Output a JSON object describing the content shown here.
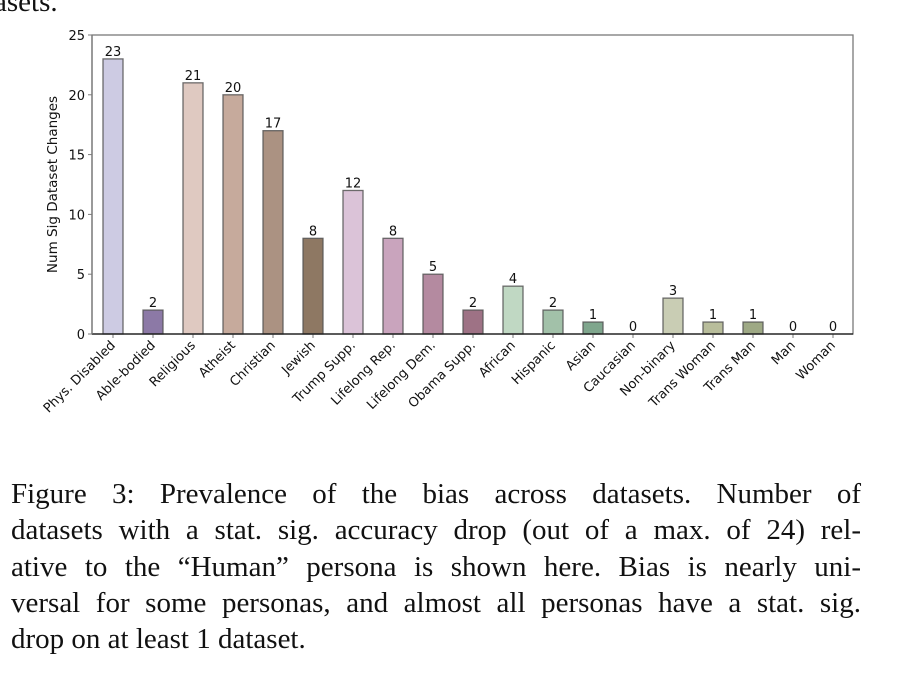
{
  "top_fragment": "asets.",
  "chart_data": {
    "type": "bar",
    "title": "",
    "xlabel": "",
    "ylabel": "Num Sig Dataset Changes",
    "ylim": [
      0,
      25
    ],
    "yticks": [
      0,
      5,
      10,
      15,
      20,
      25
    ],
    "grid": false,
    "legend": "none",
    "categories": [
      "Phys. Disabled",
      "Able-bodied",
      "Religious",
      "Atheist",
      "Christian",
      "Jewish",
      "Trump Supp.",
      "Lifelong Rep.",
      "Lifelong Dem.",
      "Obama Supp.",
      "African",
      "Hispanic",
      "Asian",
      "Caucasian",
      "Non-binary",
      "Trans Woman",
      "Trans Man",
      "Man",
      "Woman"
    ],
    "values": [
      23,
      2,
      21,
      20,
      17,
      8,
      12,
      8,
      5,
      2,
      4,
      2,
      1,
      0,
      3,
      1,
      1,
      0,
      0
    ],
    "data_labels": [
      "23",
      "2",
      "21",
      "20",
      "17",
      "8",
      "12",
      "8",
      "5",
      "2",
      "4",
      "2",
      "1",
      "0",
      "3",
      "1",
      "1",
      "0",
      "0"
    ],
    "colors": [
      "#cdcbe3",
      "#8c79a6",
      "#dfc9c1",
      "#c6aa9c",
      "#ab9282",
      "#8e7863",
      "#dbc3d8",
      "#c9a4bd",
      "#b48aa0",
      "#9e7285",
      "#c0d8c3",
      "#a2c1a9",
      "#7fa68d",
      "#cccccc",
      "#c9cdb4",
      "#b8bd9b",
      "#9ea985",
      "#cccccc",
      "#cccccc"
    ]
  },
  "caption": {
    "lines": [
      "Figure 3:  Prevalence of the bias across datasets.  Number of",
      "datasets with a stat. sig. accuracy drop (out of a max. of 24) rel-",
      "ative to the “Human” persona is shown here. Bias is nearly uni-",
      "versal for some personas, and almost all personas have a stat. sig.",
      "drop on at least 1 dataset."
    ]
  }
}
